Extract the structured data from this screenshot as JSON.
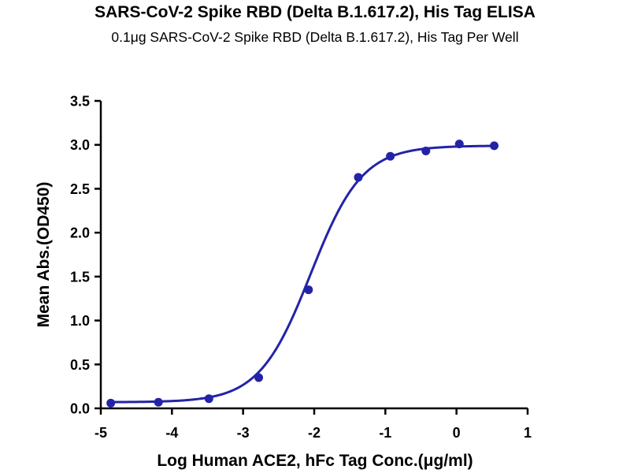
{
  "chart_data": {
    "type": "scatter",
    "title": "SARS-CoV-2 Spike RBD (Delta B.1.617.2), His Tag ELISA",
    "subtitle": "0.1μg SARS-CoV-2 Spike RBD (Delta B.1.617.2), His Tag Per Well",
    "xlabel": "Log Human ACE2, hFc Tag Conc.(μg/ml)",
    "ylabel": "Mean Abs.(OD450)",
    "xlim": [
      -5,
      1
    ],
    "ylim": [
      0,
      3.5
    ],
    "x_ticks": [
      "-5",
      "-4",
      "-3",
      "-2",
      "-1",
      "0",
      "1"
    ],
    "y_ticks": [
      "0.0",
      "0.5",
      "1.0",
      "1.5",
      "2.0",
      "2.5",
      "3.0",
      "3.5"
    ],
    "grid": false,
    "color": "#2323a8",
    "series": [
      {
        "x": [
          -4.86,
          -4.19,
          -3.48,
          -2.78,
          -2.08,
          -1.38,
          -0.93,
          -0.43,
          0.04,
          0.53
        ],
        "y": [
          0.06,
          0.07,
          0.11,
          0.35,
          1.35,
          2.63,
          2.87,
          2.93,
          3.01,
          2.99
        ]
      }
    ],
    "fit": {
      "type": "4PL sigmoid",
      "bottom": 0.07,
      "top": 2.99,
      "log_ec50": -2.05,
      "hill_slope": 1.2,
      "x_range": [
        -4.86,
        0.53
      ]
    }
  }
}
